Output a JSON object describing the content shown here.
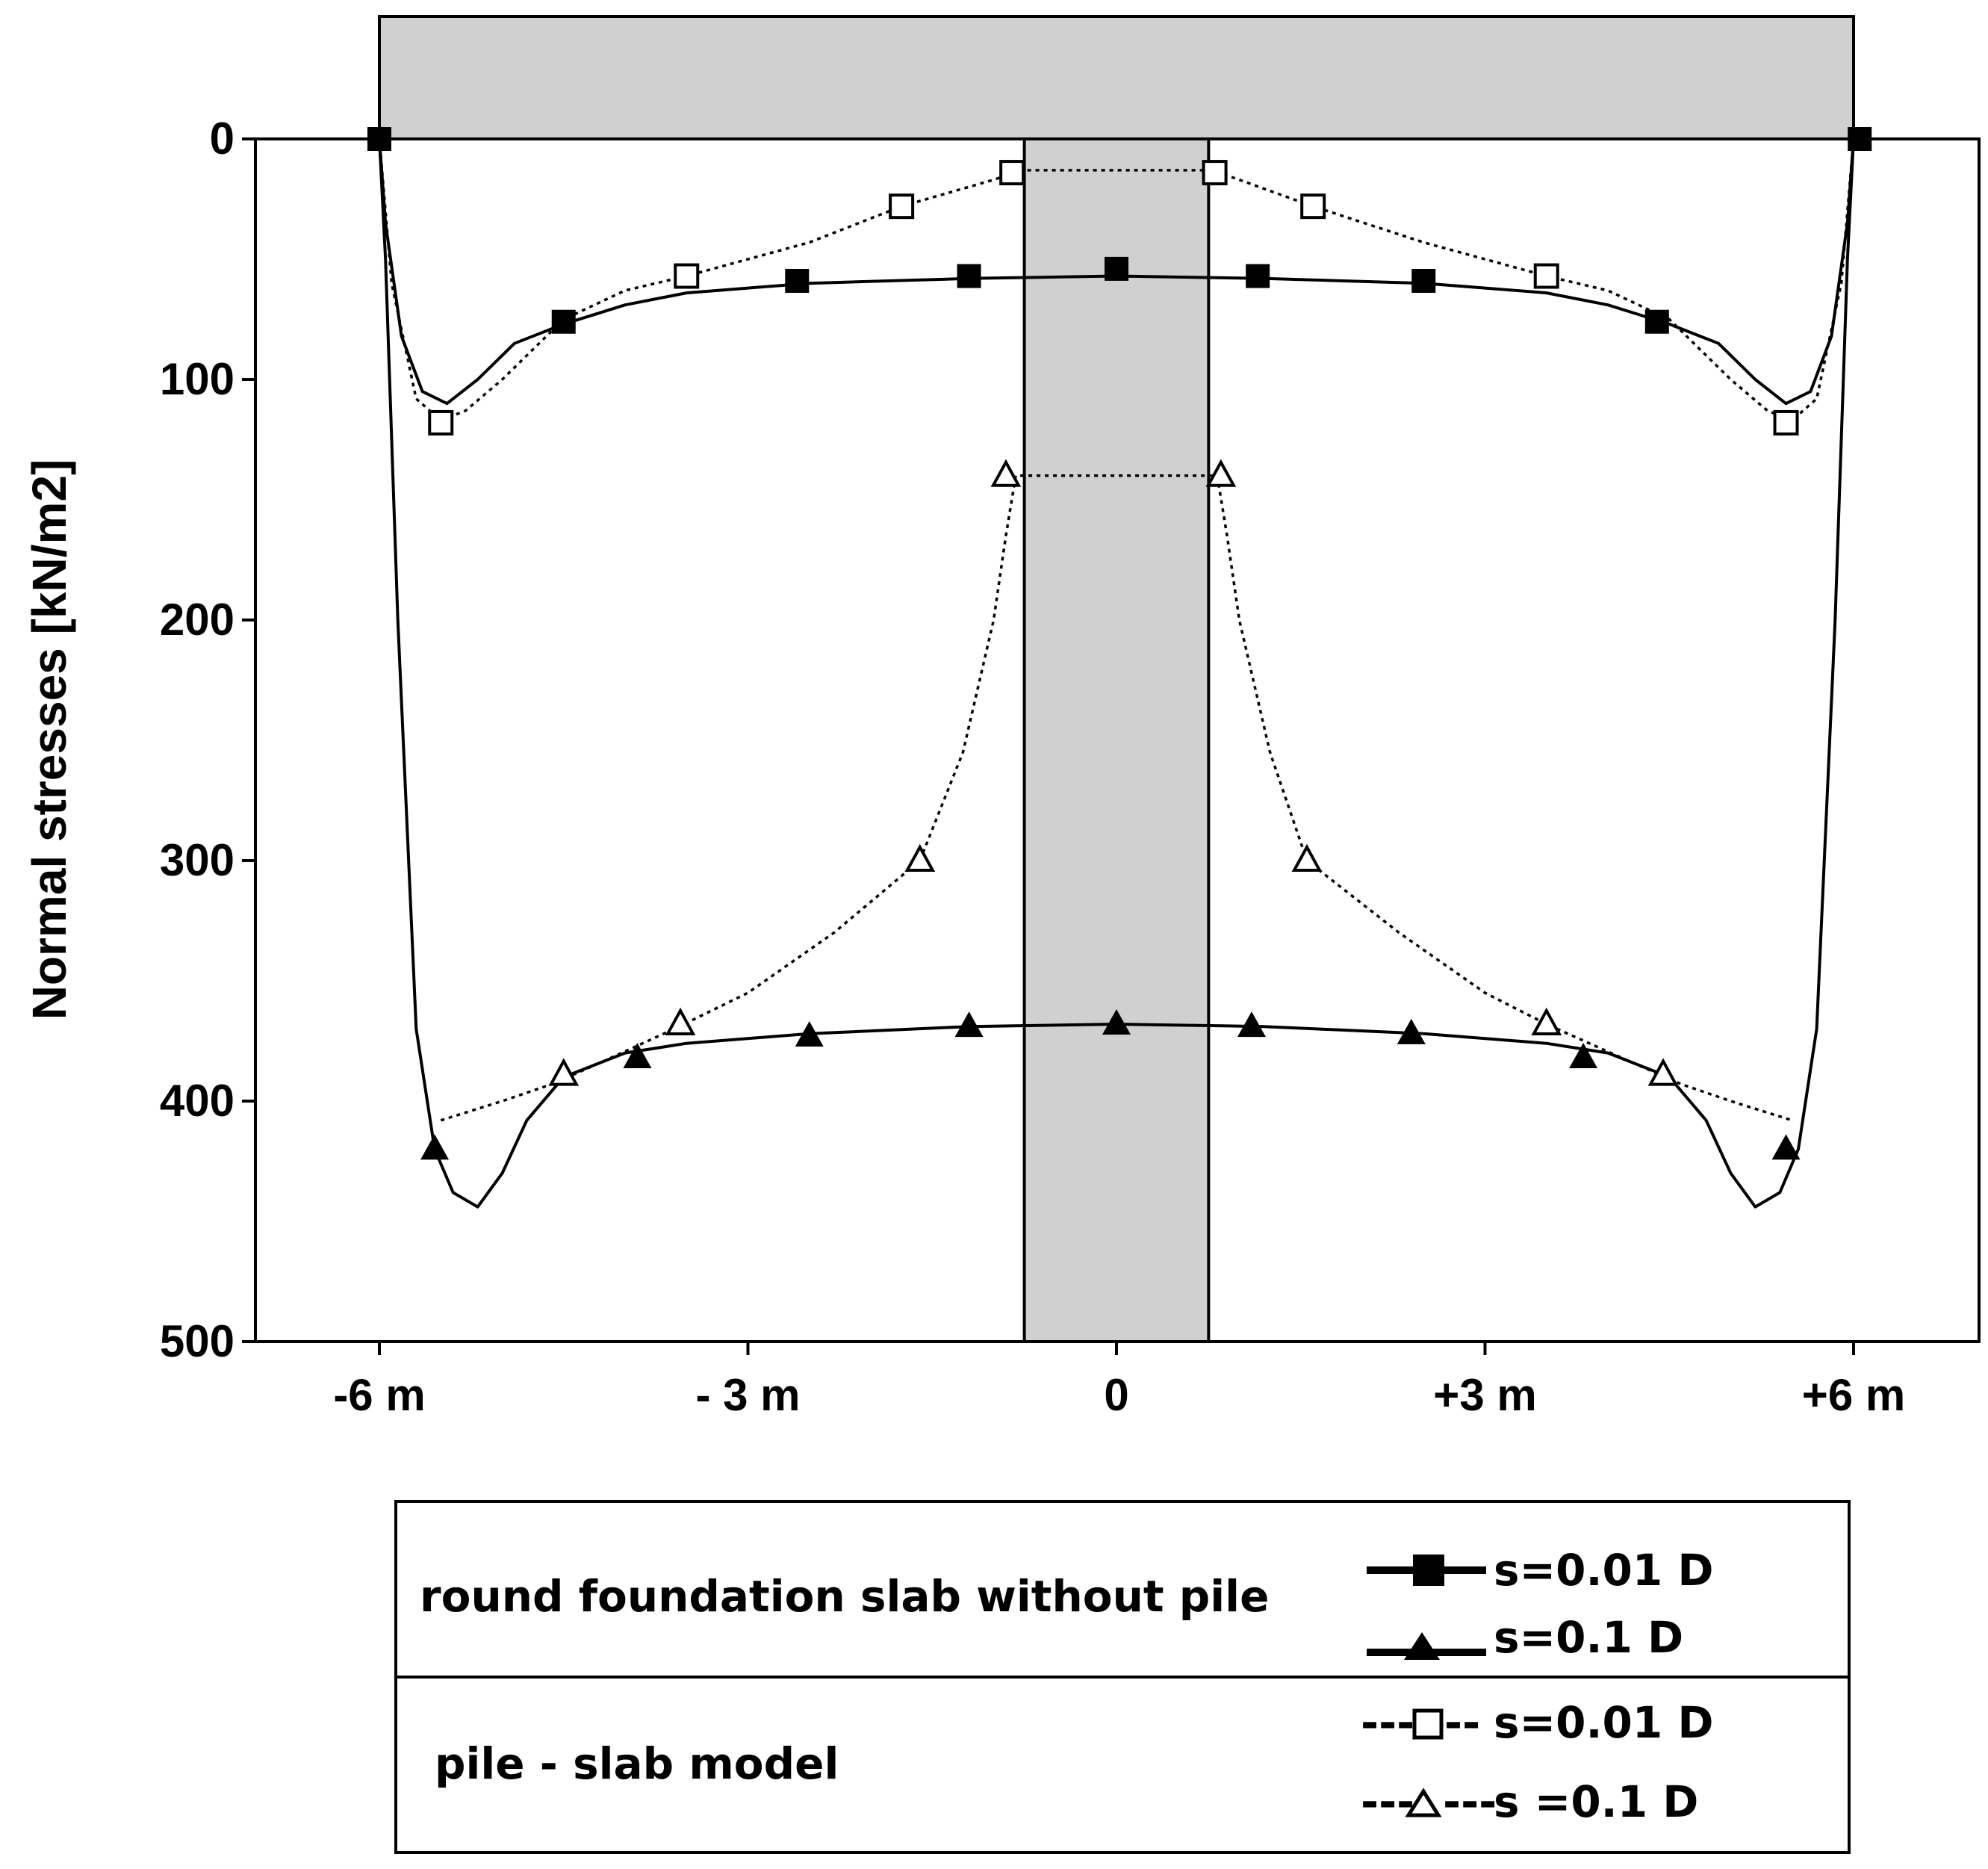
{
  "chart_data": {
    "type": "line",
    "ylabel": "Normal stresses [kN/m2]",
    "xlabel": "",
    "x_ticks": [
      {
        "value": -6,
        "label": "-6 m"
      },
      {
        "value": -3,
        "label": "- 3 m"
      },
      {
        "value": 0,
        "label": "0"
      },
      {
        "value": 3,
        "label": "+3 m"
      },
      {
        "value": 6,
        "label": "+6 m"
      }
    ],
    "y_ticks": [
      {
        "value": 0,
        "label": "0"
      },
      {
        "value": 100,
        "label": "100"
      },
      {
        "value": 200,
        "label": "200"
      },
      {
        "value": 300,
        "label": "300"
      },
      {
        "value": 400,
        "label": "400"
      },
      {
        "value": 500,
        "label": "500"
      }
    ],
    "xlim": [
      -8,
      7
    ],
    "ylim": [
      0,
      500
    ],
    "y_inverted": true,
    "grid": false,
    "slab": {
      "x_range": [
        -6,
        6
      ]
    },
    "pile": {
      "x_range": [
        -0.75,
        0.75
      ],
      "fill": "#d0d0d0"
    },
    "series": [
      {
        "group": "round foundation slab without pile",
        "name": "s=0.01 D",
        "line": "solid",
        "marker": "square-filled",
        "curve": [
          [
            -6.0,
            0
          ],
          [
            -5.95,
            35
          ],
          [
            -5.82,
            82
          ],
          [
            -5.65,
            105
          ],
          [
            -5.45,
            110
          ],
          [
            -5.2,
            100
          ],
          [
            -4.9,
            85
          ],
          [
            -4.5,
            77
          ],
          [
            -4.0,
            69
          ],
          [
            -3.5,
            64
          ],
          [
            -3.0,
            62
          ],
          [
            -2.5,
            60
          ],
          [
            -1.2,
            58
          ],
          [
            0,
            57
          ],
          [
            1.2,
            58
          ],
          [
            2.5,
            60
          ],
          [
            3.0,
            62
          ],
          [
            3.5,
            64
          ],
          [
            4.0,
            69
          ],
          [
            4.5,
            77
          ],
          [
            4.9,
            85
          ],
          [
            5.2,
            100
          ],
          [
            5.45,
            110
          ],
          [
            5.65,
            105
          ],
          [
            5.82,
            82
          ],
          [
            5.95,
            35
          ],
          [
            6.0,
            0
          ]
        ],
        "markers": [
          [
            -6.0,
            0
          ],
          [
            -4.5,
            76
          ],
          [
            -2.6,
            59
          ],
          [
            -1.2,
            57
          ],
          [
            0,
            54
          ],
          [
            1.15,
            57
          ],
          [
            2.5,
            59
          ],
          [
            4.4,
            76
          ],
          [
            6.05,
            0
          ]
        ]
      },
      {
        "group": "round foundation slab without pile",
        "name": "s=0.1 D",
        "line": "solid",
        "marker": "triangle-filled",
        "curve": [
          [
            -6.0,
            0
          ],
          [
            -5.95,
            50
          ],
          [
            -5.85,
            200
          ],
          [
            -5.7,
            370
          ],
          [
            -5.55,
            420
          ],
          [
            -5.4,
            438
          ],
          [
            -5.2,
            444
          ],
          [
            -5.0,
            430
          ],
          [
            -4.8,
            408
          ],
          [
            -4.5,
            390
          ],
          [
            -4.0,
            380
          ],
          [
            -3.5,
            376
          ],
          [
            -2.5,
            372
          ],
          [
            -1.2,
            369
          ],
          [
            0,
            368
          ],
          [
            1.2,
            369
          ],
          [
            2.5,
            372
          ],
          [
            3.5,
            376
          ],
          [
            4.0,
            380
          ],
          [
            4.5,
            390
          ],
          [
            4.8,
            408
          ],
          [
            5.0,
            430
          ],
          [
            5.2,
            444
          ],
          [
            5.4,
            438
          ],
          [
            5.55,
            420
          ],
          [
            5.7,
            370
          ],
          [
            5.85,
            200
          ],
          [
            5.95,
            50
          ],
          [
            6.0,
            0
          ]
        ],
        "markers": [
          [
            -5.55,
            420
          ],
          [
            -3.9,
            382
          ],
          [
            -2.5,
            373
          ],
          [
            -1.2,
            369
          ],
          [
            0,
            368
          ],
          [
            1.1,
            369
          ],
          [
            2.4,
            372
          ],
          [
            3.8,
            382
          ],
          [
            5.45,
            420
          ]
        ]
      },
      {
        "group": "pile - slab model",
        "name": "s=0.01 D",
        "line": "dotted",
        "marker": "square-open",
        "curve": [
          [
            -6.0,
            0
          ],
          [
            -5.9,
            60
          ],
          [
            -5.7,
            108
          ],
          [
            -5.5,
            117
          ],
          [
            -5.3,
            113
          ],
          [
            -5.0,
            100
          ],
          [
            -4.5,
            75
          ],
          [
            -4.0,
            63
          ],
          [
            -3.5,
            57
          ],
          [
            -2.5,
            43
          ],
          [
            -1.75,
            28
          ],
          [
            -1.0,
            17
          ],
          [
            -0.78,
            13
          ],
          [
            0.78,
            13
          ],
          [
            1.0,
            17
          ],
          [
            1.6,
            28
          ],
          [
            2.5,
            43
          ],
          [
            3.5,
            57
          ],
          [
            4.0,
            63
          ],
          [
            4.5,
            75
          ],
          [
            5.0,
            100
          ],
          [
            5.3,
            113
          ],
          [
            5.5,
            117
          ],
          [
            5.7,
            108
          ],
          [
            5.9,
            60
          ],
          [
            6.0,
            0
          ]
        ],
        "markers": [
          [
            -5.5,
            118
          ],
          [
            -3.5,
            57
          ],
          [
            -1.75,
            28
          ],
          [
            -0.85,
            14
          ],
          [
            0.8,
            14
          ],
          [
            1.6,
            28
          ],
          [
            3.5,
            57
          ],
          [
            5.45,
            118
          ]
        ]
      },
      {
        "group": "pile - slab model",
        "name": "s =0.1 D",
        "line": "dotted",
        "marker": "triangle-open",
        "curve": [
          [
            -5.5,
            408
          ],
          [
            -5.0,
            400
          ],
          [
            -4.6,
            393
          ],
          [
            -4.2,
            384
          ],
          [
            -3.6,
            370
          ],
          [
            -3.0,
            355
          ],
          [
            -2.3,
            330
          ],
          [
            -1.6,
            300
          ],
          [
            -1.25,
            255
          ],
          [
            -1.0,
            200
          ],
          [
            -0.9,
            165
          ],
          [
            -0.82,
            140
          ],
          [
            0.82,
            140
          ],
          [
            0.9,
            165
          ],
          [
            1.0,
            200
          ],
          [
            1.25,
            255
          ],
          [
            1.55,
            300
          ],
          [
            2.3,
            330
          ],
          [
            3.0,
            355
          ],
          [
            3.5,
            368
          ],
          [
            4.2,
            384
          ],
          [
            4.6,
            393
          ],
          [
            5.0,
            400
          ],
          [
            5.5,
            408
          ]
        ],
        "markers": [
          [
            -4.5,
            389
          ],
          [
            -3.55,
            368
          ],
          [
            -1.6,
            300
          ],
          [
            -0.9,
            140
          ],
          [
            0.85,
            140
          ],
          [
            1.55,
            300
          ],
          [
            3.5,
            368
          ],
          [
            4.45,
            389
          ]
        ]
      }
    ]
  },
  "legend": {
    "group1_label": "round foundation slab without pile",
    "group2_label": "pile - slab model",
    "entry1_label": "s=0.01 D",
    "entry2_label": "s=0.1 D",
    "entry3_label": "s=0.01 D",
    "entry4_label": "s =0.1 D",
    "dash_prefix": "---",
    "dash_suffix": "--",
    "dash_suffix2": "---"
  }
}
